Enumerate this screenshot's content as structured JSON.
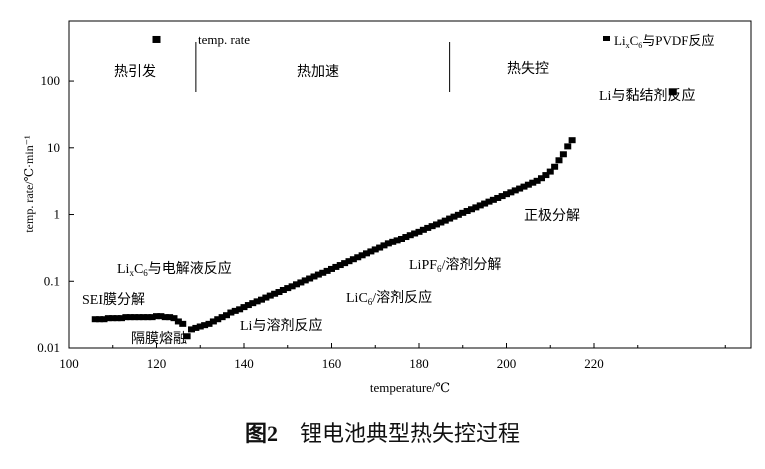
{
  "chart_data": {
    "type": "scatter",
    "title": "",
    "xlabel": "temperature/℃",
    "ylabel": "temp. rate/℃·min⁻¹",
    "xlim": [
      100,
      260
    ],
    "ylim_log10": [
      -2,
      2.9
    ],
    "y_scale": "log",
    "grid": false,
    "x_ticks": [
      {
        "value": 100,
        "label": "100"
      },
      {
        "value": 120,
        "label": "120"
      },
      {
        "value": 140,
        "label": "140"
      },
      {
        "value": 160,
        "label": "160"
      },
      {
        "value": 180,
        "label": "180"
      },
      {
        "value": 200,
        "label": "200"
      },
      {
        "value": 220,
        "label": "220"
      }
    ],
    "y_ticks": [
      {
        "value": 0.01,
        "label": "0.01"
      },
      {
        "value": 0.1,
        "label": "0.1"
      },
      {
        "value": 1,
        "label": "1"
      },
      {
        "value": 10,
        "label": "10"
      },
      {
        "value": 100,
        "label": "100"
      }
    ],
    "series": [
      {
        "name": "temp. rate",
        "color": "#000000",
        "x": [
          106,
          107,
          108,
          109,
          110,
          111,
          112,
          113,
          114,
          115,
          116,
          117,
          118,
          119,
          120,
          121,
          122,
          123,
          124,
          125,
          126,
          127,
          128,
          129,
          130,
          131,
          132,
          133,
          134,
          135,
          136,
          137,
          138,
          139,
          140,
          141,
          142,
          143,
          144,
          145,
          146,
          147,
          148,
          149,
          150,
          151,
          152,
          153,
          154,
          155,
          156,
          157,
          158,
          159,
          160,
          161,
          162,
          163,
          164,
          165,
          166,
          167,
          168,
          169,
          170,
          171,
          172,
          173,
          174,
          175,
          176,
          177,
          178,
          179,
          180,
          181,
          182,
          183,
          184,
          185,
          186,
          187,
          188,
          189,
          190,
          191,
          192,
          193,
          194,
          195,
          196,
          197,
          198,
          199,
          200,
          201,
          202,
          203,
          204,
          205,
          206,
          207,
          208,
          209,
          210,
          211,
          212,
          213,
          214,
          215
        ],
        "y": [
          0.027,
          0.027,
          0.027,
          0.028,
          0.028,
          0.028,
          0.028,
          0.029,
          0.029,
          0.029,
          0.029,
          0.029,
          0.029,
          0.029,
          0.03,
          0.03,
          0.029,
          0.029,
          0.028,
          0.025,
          0.023,
          0.015,
          0.019,
          0.02,
          0.021,
          0.022,
          0.023,
          0.025,
          0.027,
          0.029,
          0.031,
          0.034,
          0.036,
          0.038,
          0.041,
          0.044,
          0.047,
          0.05,
          0.053,
          0.057,
          0.061,
          0.065,
          0.069,
          0.074,
          0.079,
          0.084,
          0.09,
          0.096,
          0.103,
          0.11,
          0.118,
          0.126,
          0.134,
          0.143,
          0.153,
          0.164,
          0.175,
          0.187,
          0.2,
          0.214,
          0.229,
          0.245,
          0.262,
          0.28,
          0.3,
          0.32,
          0.345,
          0.37,
          0.39,
          0.41,
          0.43,
          0.46,
          0.49,
          0.52,
          0.55,
          0.59,
          0.63,
          0.67,
          0.71,
          0.76,
          0.81,
          0.87,
          0.93,
          0.99,
          1.06,
          1.13,
          1.2,
          1.28,
          1.37,
          1.46,
          1.56,
          1.66,
          1.77,
          1.89,
          2.02,
          2.15,
          2.3,
          2.45,
          2.62,
          2.8,
          3.0,
          3.2,
          3.5,
          3.9,
          4.4,
          5.2,
          6.5,
          8.0,
          10.5,
          13.0
        ]
      }
    ],
    "outlier_points": [
      {
        "x": 120,
        "y": 420
      },
      {
        "x": 238,
        "y": 69
      }
    ],
    "legend": {
      "label": "temp. rate",
      "placement": "top-left"
    },
    "stage_labels": [
      "热引发",
      "热加速",
      "热失控"
    ],
    "stage_dividers_x": [
      129,
      187
    ]
  },
  "annotations": {
    "sei": "SEI膜分解",
    "lixc6_elyte": {
      "pre": "Li",
      "sub1": "x",
      "mid": "C",
      "sub2": "6",
      "post": "与电解液反应"
    },
    "separator": "隔膜熔融",
    "li_solvent": "Li与溶剂反应",
    "lic6_solvent": {
      "pre": "LiC",
      "sub": "6",
      "post": "/溶剂反应"
    },
    "lipf6_solvent": {
      "pre": "LiPF",
      "sub": "6",
      "post": "/溶剂分解"
    },
    "cathode": "正极分解",
    "lixc6_pvdf": {
      "pre": "Li",
      "sub1": "x",
      "mid": "C",
      "sub2": "6",
      "post": "与PVDF反应"
    },
    "li_binder": "Li与黏结剂反应"
  },
  "caption": {
    "number": "图2",
    "text": "锂电池典型热失控过程"
  }
}
